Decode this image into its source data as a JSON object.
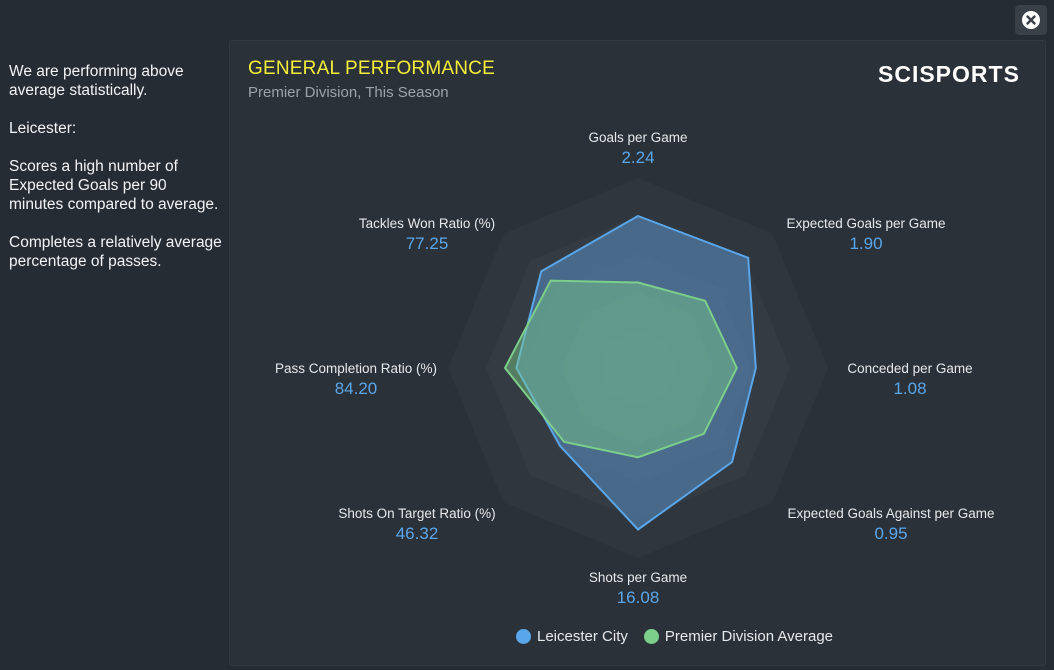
{
  "side_text": {
    "p1": "We are performing above average statistically.",
    "p2": "Leicester:",
    "p3": "Scores a high number of Expected Goals per 90 minutes compared to average.",
    "p4": "Completes a relatively average percentage of passes."
  },
  "header": {
    "title": "GENERAL PERFORMANCE",
    "subtitle": "Premier Division, This Season",
    "logo_text": "SCISPORTS"
  },
  "colors": {
    "team": "#5aa6ea",
    "average": "#7ccf8a",
    "title": "#f4ee3a"
  },
  "chart_data": {
    "type": "radar",
    "axes": [
      {
        "name": "Goals per Game",
        "value": "2.24"
      },
      {
        "name": "Expected Goals per Game",
        "value": "1.90"
      },
      {
        "name": "Conceded per Game",
        "value": "1.08"
      },
      {
        "name": "Expected Goals Against per Game",
        "value": "0.95"
      },
      {
        "name": "Shots per Game",
        "value": "16.08"
      },
      {
        "name": "Shots On Target Ratio (%)",
        "value": "46.32"
      },
      {
        "name": "Pass Completion Ratio (%)",
        "value": "84.20"
      },
      {
        "name": "Tackles Won Ratio (%)",
        "value": "77.25"
      }
    ],
    "series": [
      {
        "name": "Leicester City",
        "values": [
          0.8,
          0.82,
          0.62,
          0.7,
          0.85,
          0.58,
          0.64,
          0.72
        ]
      },
      {
        "name": "Premier Division Average",
        "values": [
          0.45,
          0.5,
          0.52,
          0.49,
          0.47,
          0.55,
          0.7,
          0.65
        ]
      }
    ],
    "rings": 5,
    "legend_position": "bottom"
  },
  "legend": {
    "team_label": "Leicester City",
    "average_label": "Premier Division Average"
  }
}
